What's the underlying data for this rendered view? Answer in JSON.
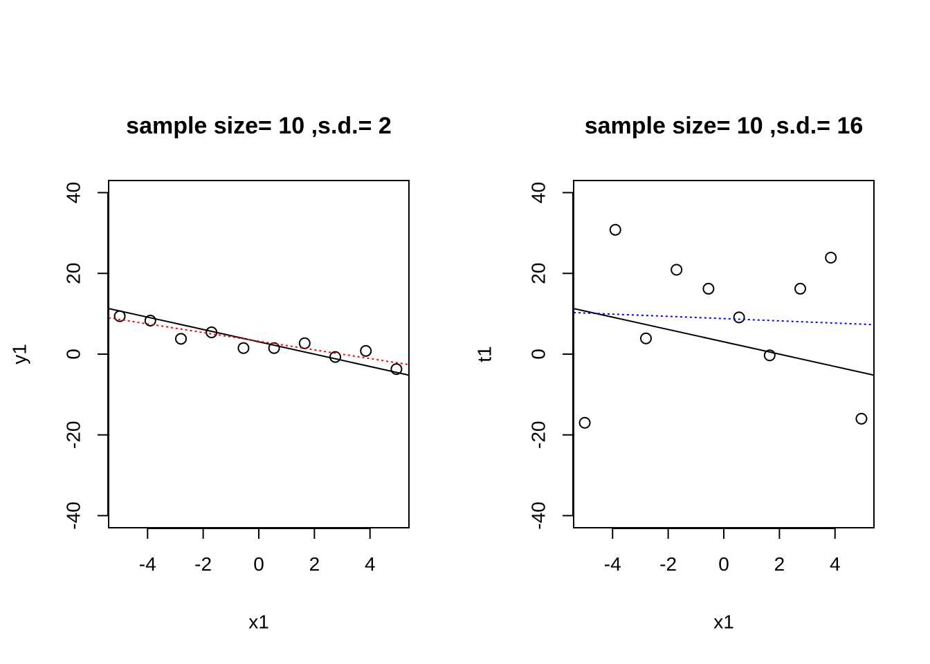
{
  "chart_data": [
    {
      "type": "scatter",
      "title": "sample size= 10 ,s.d.= 2",
      "xlabel": "x1",
      "ylabel": "y1",
      "xlim": [
        -5.4,
        5.4
      ],
      "ylim": [
        -43,
        43
      ],
      "xticks": [
        "-4",
        "-2",
        "0",
        "2",
        "4"
      ],
      "yticks": [
        "-40",
        "-20",
        "0",
        "20",
        "40"
      ],
      "grid": false,
      "series": [
        {
          "kind": "points",
          "marker": "open-circle",
          "x": [
            -5.0,
            -3.9,
            -2.8,
            -1.7,
            -0.55,
            0.55,
            1.65,
            2.75,
            3.85,
            4.95
          ],
          "y": [
            9.4,
            8.3,
            3.8,
            5.4,
            1.5,
            1.5,
            2.7,
            -0.7,
            0.8,
            -3.7
          ]
        },
        {
          "kind": "line",
          "style": "solid",
          "color": "#000000",
          "x": [
            -5.4,
            5.4
          ],
          "y": [
            11.3,
            -5.2
          ]
        },
        {
          "kind": "line",
          "style": "dotted",
          "color": "#ff0000",
          "x": [
            -5.4,
            5.4
          ],
          "y": [
            9.0,
            -2.6
          ]
        }
      ]
    },
    {
      "type": "scatter",
      "title": "sample size= 10 ,s.d.= 16",
      "xlabel": "x1",
      "ylabel": "t1",
      "xlim": [
        -5.4,
        5.4
      ],
      "ylim": [
        -43,
        43
      ],
      "xticks": [
        "-4",
        "-2",
        "0",
        "2",
        "4"
      ],
      "yticks": [
        "-40",
        "-20",
        "0",
        "20",
        "40"
      ],
      "grid": false,
      "series": [
        {
          "kind": "points",
          "marker": "open-circle",
          "x": [
            -5.0,
            -3.9,
            -2.8,
            -1.7,
            -0.55,
            0.55,
            1.65,
            2.75,
            3.85,
            4.95
          ],
          "y": [
            -17.0,
            30.8,
            3.9,
            20.9,
            16.2,
            9.1,
            -0.3,
            16.2,
            23.9,
            -16.0
          ]
        },
        {
          "kind": "line",
          "style": "solid",
          "color": "#000000",
          "x": [
            -5.4,
            5.4
          ],
          "y": [
            11.3,
            -5.2
          ]
        },
        {
          "kind": "line",
          "style": "dotted",
          "color": "#0000ff",
          "x": [
            -5.4,
            5.4
          ],
          "y": [
            10.3,
            7.3
          ]
        }
      ]
    }
  ]
}
